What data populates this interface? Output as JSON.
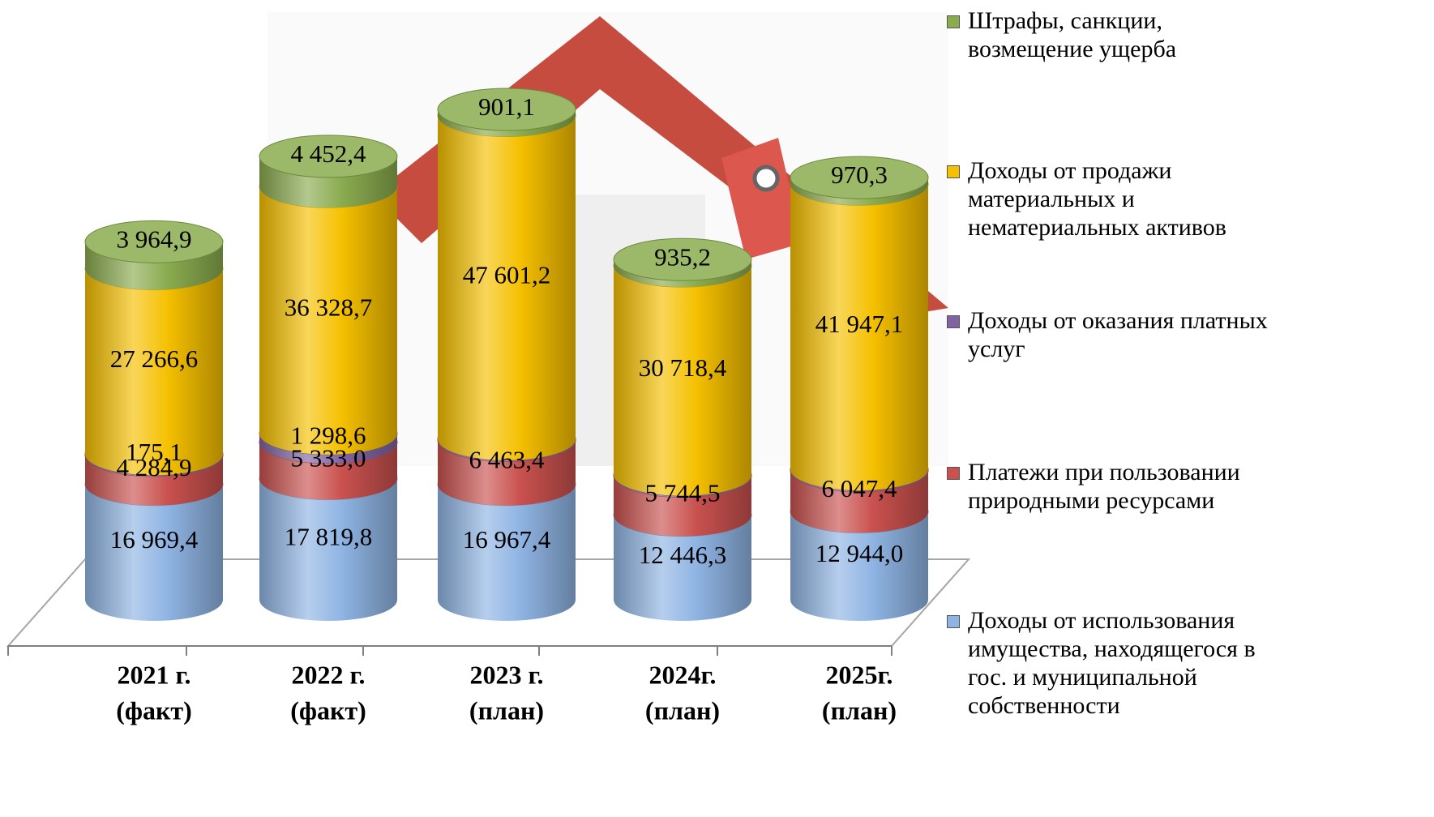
{
  "chart_data": {
    "type": "stacked-cylinder",
    "categories": [
      [
        "2021 г.",
        "(факт)"
      ],
      [
        "2022 г.",
        "(факт)"
      ],
      [
        "2023 г.",
        "(план)"
      ],
      [
        "2024г.",
        "(план)"
      ],
      [
        "2025г.",
        "(план)"
      ]
    ],
    "series": [
      {
        "name": "Доходы от использования имущества, находящегося в гос. и муниципальной собственности",
        "color": "#8fb4e3",
        "values": [
          16969.4,
          17819.8,
          16967.4,
          12446.3,
          12944.0
        ],
        "value_labels": [
          "16 969,4",
          "17 819,8",
          "16 967,4",
          "12 446,3",
          "12 944,0"
        ]
      },
      {
        "name": "Платежи при пользовании природными ресурсами",
        "color": "#c9514e",
        "values": [
          4284.9,
          5333.0,
          6463.4,
          5744.5,
          6047.4
        ],
        "value_labels": [
          "4 284,9",
          "5 333,0",
          "6 463,4",
          "5 744,5",
          "6 047,4"
        ]
      },
      {
        "name": "Доходы от оказания платных услуг",
        "color": "#8064a2",
        "values": [
          175.1,
          1298.6,
          200,
          200,
          200
        ],
        "value_labels": [
          "175,1",
          "1 298,6",
          null,
          null,
          null
        ]
      },
      {
        "name": "Доходы от продажи материальных и нематериальных активов",
        "color": "#f5c000",
        "values": [
          27266.6,
          36328.7,
          47601.2,
          30718.4,
          41947.1
        ],
        "value_labels": [
          "27 266,6",
          "36 328,7",
          "47 601,2",
          "30 718,4",
          "41 947,1"
        ]
      },
      {
        "name": "Штрафы, санкции, возмещение ущерба",
        "color": "#8aab4f",
        "values": [
          3964.9,
          4452.4,
          901.1,
          935.2,
          970.3
        ],
        "value_labels": [
          "3 964,9",
          "4 452,4",
          "901,1",
          "935,2",
          "970,3"
        ]
      }
    ]
  }
}
